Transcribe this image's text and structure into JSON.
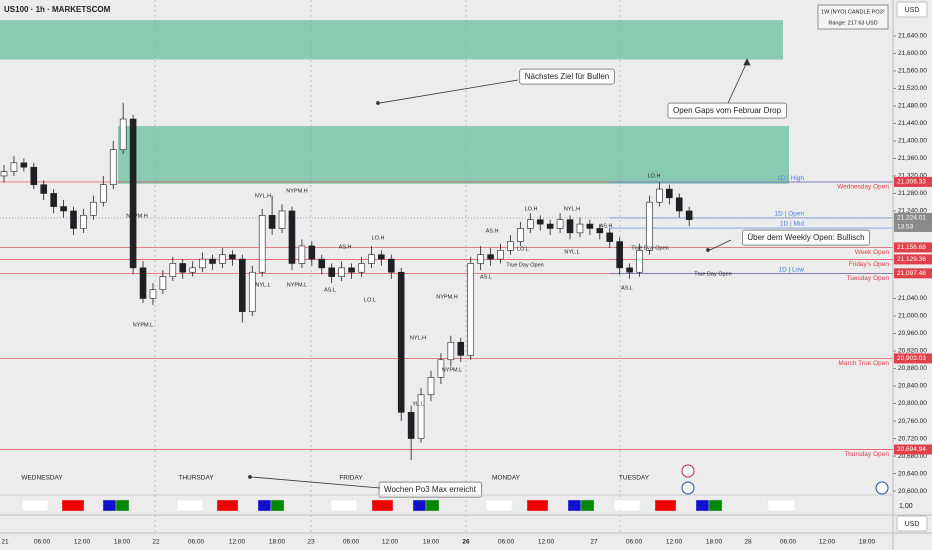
{
  "chart_data": {
    "type": "candlestick",
    "title": "US100 · 1h · MARKETSCOM",
    "currency": "USD",
    "pane_value": "1,00",
    "info_box": [
      "1W (NYO) CANDLE PO3°",
      "Range: 217.63 USD"
    ],
    "ylim": [
      20591,
      21722
    ],
    "yticks": [
      {
        "value": 21640,
        "label": "21,640.00"
      },
      {
        "value": 21600,
        "label": "21,600.00"
      },
      {
        "value": 21560,
        "label": "21,560.00"
      },
      {
        "value": 21520,
        "label": "21,520.00"
      },
      {
        "value": 21480,
        "label": "21,480.00"
      },
      {
        "value": 21440,
        "label": "21,440.00"
      },
      {
        "value": 21400,
        "label": "21,400.00"
      },
      {
        "value": 21360,
        "label": "21,360.00"
      },
      {
        "value": 21320,
        "label": "21,320.00"
      },
      {
        "value": 21280,
        "label": "21,280.00"
      },
      {
        "value": 21240,
        "label": "21,240.00"
      },
      {
        "value": 21040,
        "label": "21,040.00"
      },
      {
        "value": 21000,
        "label": "21,000.00"
      },
      {
        "value": 20960,
        "label": "20,960.00"
      },
      {
        "value": 20920,
        "label": "20,920.00"
      },
      {
        "value": 20880,
        "label": "20,880.00"
      },
      {
        "value": 20840,
        "label": "20,840.00"
      },
      {
        "value": 20800,
        "label": "20,800.00"
      },
      {
        "value": 20760,
        "label": "20,760.00"
      },
      {
        "value": 20720,
        "label": "20,720.00"
      },
      {
        "value": 20680,
        "label": "20,680.00"
      },
      {
        "value": 20640,
        "label": "20,640.00"
      },
      {
        "value": 20600,
        "label": "20,600.00"
      }
    ],
    "xticks": [
      "21",
      "06:00",
      "12:00",
      "18:00",
      "22",
      "06:00",
      "12:00",
      "18:00",
      "23",
      "06:00",
      "12:00",
      "18:00",
      "26",
      "06:00",
      "12:00",
      "27",
      "06:00",
      "12:00",
      "18:00",
      "28",
      "06:00",
      "12:00",
      "18:00"
    ],
    "days": [
      "WEDNESDAY",
      "THURSDAY",
      "FRIDAY",
      "MONDAY",
      "TUESDAY"
    ],
    "up_color": "#ffffff",
    "down_color": "#1f1f24",
    "candles": [
      [
        21320,
        21345,
        21305,
        21330
      ],
      [
        21330,
        21365,
        21320,
        21350
      ],
      [
        21350,
        21360,
        21330,
        21340
      ],
      [
        21340,
        21350,
        21290,
        21300
      ],
      [
        21300,
        21310,
        21265,
        21280
      ],
      [
        21280,
        21290,
        21235,
        21250
      ],
      [
        21250,
        21265,
        21225,
        21240
      ],
      [
        21240,
        21250,
        21185,
        21200
      ],
      [
        21200,
        21245,
        21190,
        21230
      ],
      [
        21230,
        21275,
        21220,
        21260
      ],
      [
        21260,
        21320,
        21250,
        21300
      ],
      [
        21300,
        21400,
        21290,
        21380
      ],
      [
        21380,
        21487,
        21370,
        21450
      ],
      [
        21450,
        21460,
        21095,
        21110
      ],
      [
        21110,
        21125,
        21030,
        21040
      ],
      [
        21040,
        21075,
        21025,
        21060
      ],
      [
        21060,
        21105,
        21050,
        21090
      ],
      [
        21090,
        21135,
        21080,
        21120
      ],
      [
        21120,
        21130,
        21085,
        21100
      ],
      [
        21100,
        21125,
        21090,
        21110
      ],
      [
        21110,
        21145,
        21100,
        21130
      ],
      [
        21130,
        21140,
        21105,
        21120
      ],
      [
        21120,
        21155,
        21110,
        21140
      ],
      [
        21140,
        21150,
        21115,
        21130
      ],
      [
        21130,
        21140,
        20985,
        21010
      ],
      [
        21010,
        21115,
        21000,
        21100
      ],
      [
        21100,
        21245,
        21090,
        21230
      ],
      [
        21230,
        21275,
        21185,
        21200
      ],
      [
        21200,
        21255,
        21190,
        21240
      ],
      [
        21240,
        21250,
        21105,
        21120
      ],
      [
        21120,
        21175,
        21110,
        21160
      ],
      [
        21160,
        21170,
        21115,
        21130
      ],
      [
        21130,
        21140,
        21095,
        21110
      ],
      [
        21110,
        21120,
        21075,
        21090
      ],
      [
        21090,
        21125,
        21080,
        21110
      ],
      [
        21110,
        21120,
        21085,
        21100
      ],
      [
        21100,
        21135,
        21090,
        21120
      ],
      [
        21120,
        21160,
        21110,
        21140
      ],
      [
        21140,
        21150,
        21115,
        21130
      ],
      [
        21130,
        21140,
        21085,
        21100
      ],
      [
        21100,
        21110,
        20760,
        20780
      ],
      [
        20780,
        20795,
        20671,
        20720
      ],
      [
        20720,
        20835,
        20710,
        20820
      ],
      [
        20820,
        20875,
        20805,
        20860
      ],
      [
        20860,
        20915,
        20845,
        20900
      ],
      [
        20900,
        20955,
        20885,
        20940
      ],
      [
        20940,
        20950,
        20895,
        20910
      ],
      [
        20910,
        21135,
        20900,
        21120
      ],
      [
        21120,
        21160,
        21105,
        21140
      ],
      [
        21140,
        21155,
        21115,
        21130
      ],
      [
        21130,
        21165,
        21120,
        21150
      ],
      [
        21150,
        21185,
        21140,
        21170
      ],
      [
        21170,
        21215,
        21160,
        21200
      ],
      [
        21200,
        21235,
        21190,
        21220
      ],
      [
        21220,
        21230,
        21195,
        21210
      ],
      [
        21210,
        21220,
        21185,
        21200
      ],
      [
        21200,
        21235,
        21190,
        21220
      ],
      [
        21220,
        21230,
        21175,
        21190
      ],
      [
        21190,
        21225,
        21180,
        21210
      ],
      [
        21210,
        21220,
        21185,
        21200
      ],
      [
        21200,
        21210,
        21175,
        21190
      ],
      [
        21190,
        21200,
        21155,
        21170
      ],
      [
        21170,
        21180,
        21095,
        21110
      ],
      [
        21110,
        21120,
        21085,
        21100
      ],
      [
        21100,
        21165,
        21090,
        21150
      ],
      [
        21150,
        21275,
        21140,
        21260
      ],
      [
        21260,
        21305,
        21250,
        21290
      ],
      [
        21290,
        21300,
        21255,
        21270
      ],
      [
        21270,
        21280,
        21225,
        21240
      ],
      [
        21240,
        21250,
        21205,
        21220
      ]
    ],
    "zones": [
      {
        "top": 21676,
        "bottom": 21586,
        "color": "#7fc6ad"
      },
      {
        "top": 21434,
        "bottom": 21302,
        "color": "#7fc6ad"
      }
    ],
    "levels": [
      {
        "name": "Wednesday Open",
        "value": 21306.33,
        "label": "21,306.33",
        "color": "#e0404a"
      },
      {
        "name": "Week Open",
        "value": 21156.68,
        "label": "21,156.68",
        "color": "#e0404a"
      },
      {
        "name": "Friday's Open",
        "value": 21129.36,
        "label": "21,129.36",
        "color": "#e0404a"
      },
      {
        "name": "Tuesday Open",
        "value": 21097.48,
        "label": "21,097.48",
        "color": "#e0404a"
      },
      {
        "name": "March True Open",
        "value": 20903.03,
        "label": "20,903.03",
        "color": "#e0404a"
      },
      {
        "name": "Thursday Open",
        "value": 20694.94,
        "label": "20,694.94",
        "color": "#e0404a"
      }
    ],
    "daily_levels": [
      {
        "name": "1D | High",
        "value": 21306,
        "color": "#4a7fe0"
      },
      {
        "name": "1D | Open",
        "value": 21224.01,
        "color": "#4a7fe0"
      },
      {
        "name": "1D | Mid",
        "value": 21201,
        "color": "#4a7fe0"
      },
      {
        "name": "1D | Low",
        "value": 21097,
        "color": "#4a7fe0"
      }
    ],
    "last_price": {
      "value": 21224.01,
      "label": "21,224.01",
      "countdown": "13:53"
    },
    "annotations": [
      "Nächstes Ziel für Bullen",
      "Open Gaps vom Februar Drop",
      "Über dem Weekly Open: Bullisch",
      "Wochen Po3 Max erreicht"
    ],
    "session_labels": [
      "NYPM.H",
      "NYPM.L",
      "NYL.H",
      "NYL.L",
      "NYPM.H",
      "NYPM.L",
      "AS.H",
      "AS.L",
      "LO.H",
      "LO.L",
      "NYPM.H",
      "NYL.H",
      "NYPM.L",
      "YL.L",
      "AS.H",
      "AS.L",
      "LO.H",
      "LO.L",
      "NYL.H",
      "NYL.L",
      "AS.H",
      "LO.H",
      "AS.L",
      "True Day Open",
      "True Day Open",
      "True Day Open"
    ]
  }
}
